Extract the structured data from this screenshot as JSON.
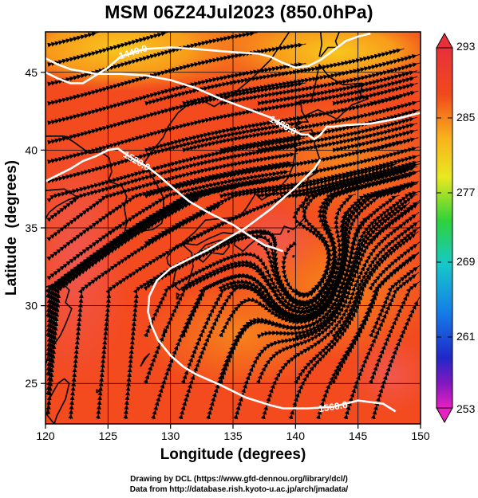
{
  "title": "MSM 06Z24Jul2023 (850.0hPa)",
  "map": {
    "xlabel": "Longitude (degrees)",
    "ylabel": "Latitude  (degrees)",
    "xlim": [
      120,
      150
    ],
    "ylim": [
      22.4,
      47.6
    ],
    "xticks": [
      120,
      125,
      130,
      135,
      140,
      145,
      150
    ],
    "yticks": [
      25,
      30,
      35,
      40,
      45
    ],
    "grid": true,
    "field": "temperature shading with streamlines",
    "contours": [
      {
        "label": "1440.0",
        "points": [
          [
            120,
            45.0
          ],
          [
            121,
            44.6
          ],
          [
            122,
            44.3
          ],
          [
            123,
            44.3
          ],
          [
            124,
            44.8
          ],
          [
            125,
            45.3
          ],
          [
            126,
            46.0
          ],
          [
            127,
            46.3
          ],
          [
            128,
            46.5
          ],
          [
            130,
            46.6
          ],
          [
            132,
            46.5
          ],
          [
            135,
            46.3
          ],
          [
            137,
            46.2
          ],
          [
            138,
            46.0
          ],
          [
            139,
            45.6
          ],
          [
            140,
            45.3
          ],
          [
            141,
            45.4
          ],
          [
            142,
            45.8
          ],
          [
            143,
            46.4
          ],
          [
            144,
            47.0
          ],
          [
            145,
            47.3
          ],
          [
            146,
            47.5
          ]
        ]
      },
      {
        "label": "1480.0",
        "points": [
          [
            120,
            45.9
          ],
          [
            121,
            45.5
          ],
          [
            122,
            45.2
          ],
          [
            124,
            44.9
          ],
          [
            126,
            44.9
          ],
          [
            128,
            44.8
          ],
          [
            130,
            44.5
          ],
          [
            132,
            44.0
          ],
          [
            134,
            43.3
          ],
          [
            136,
            42.7
          ],
          [
            138,
            42.1
          ],
          [
            139,
            41.6
          ],
          [
            140,
            41.2
          ],
          [
            140.5,
            41.0
          ],
          [
            141,
            41.0
          ],
          [
            141.5,
            40.7
          ],
          [
            142,
            41.0
          ],
          [
            142.5,
            41.5
          ],
          [
            143,
            41.5
          ],
          [
            144,
            41.6
          ],
          [
            146,
            41.7
          ],
          [
            148,
            42.0
          ],
          [
            150,
            42.4
          ]
        ]
      },
      {
        "label": "1520.0",
        "points": [
          [
            120,
            38.0
          ],
          [
            121,
            38.4
          ],
          [
            122,
            38.8
          ],
          [
            123,
            39.3
          ],
          [
            124,
            39.6
          ],
          [
            125,
            40.0
          ],
          [
            125.8,
            40.1
          ],
          [
            126.5,
            39.7
          ],
          [
            127.3,
            39.3
          ],
          [
            128.2,
            38.9
          ],
          [
            129,
            38.4
          ],
          [
            130,
            37.7
          ],
          [
            131.5,
            36.7
          ],
          [
            133,
            36.0
          ],
          [
            135,
            35.2
          ],
          [
            136.5,
            34.4
          ],
          [
            137.5,
            33.9
          ],
          [
            138.3,
            33.7
          ],
          [
            139,
            33.5
          ]
        ]
      },
      {
        "label": "1560.0",
        "points": [
          [
            148,
            23.2
          ],
          [
            147,
            23.7
          ],
          [
            145,
            23.9
          ],
          [
            143,
            23.5
          ],
          [
            141,
            23.4
          ],
          [
            139,
            23.4
          ],
          [
            138,
            23.6
          ],
          [
            136,
            24.1
          ],
          [
            134,
            24.9
          ],
          [
            132,
            25.6
          ],
          [
            131,
            26.1
          ],
          [
            130,
            26.8
          ],
          [
            129,
            27.8
          ],
          [
            128.5,
            28.7
          ],
          [
            128.2,
            29.6
          ],
          [
            128.3,
            30.6
          ],
          [
            128.9,
            31.6
          ],
          [
            130,
            32.4
          ],
          [
            131.5,
            33.0
          ],
          [
            133,
            33.6
          ],
          [
            134.5,
            34.3
          ],
          [
            136,
            35.0
          ],
          [
            138,
            36.2
          ],
          [
            140,
            37.6
          ],
          [
            141.5,
            38.8
          ],
          [
            142,
            39.4
          ]
        ]
      }
    ]
  },
  "colorbar": {
    "min": 253,
    "max": 293,
    "tick_labels": [
      "293",
      "285",
      "277",
      "269",
      "261",
      "253"
    ]
  },
  "footer": {
    "line1": "Drawing by DCL (https://www.gfd-dennou.org/library/dcl/)",
    "line2": "Data from http://database.rish.kyoto-u.ac.jp/arch/jmadata/"
  },
  "colors": {
    "field_warm": "#f4461e",
    "field_cool": "#f9a21a",
    "contour": "#ffffff",
    "streamline": "#000000",
    "coast": "#000000"
  }
}
